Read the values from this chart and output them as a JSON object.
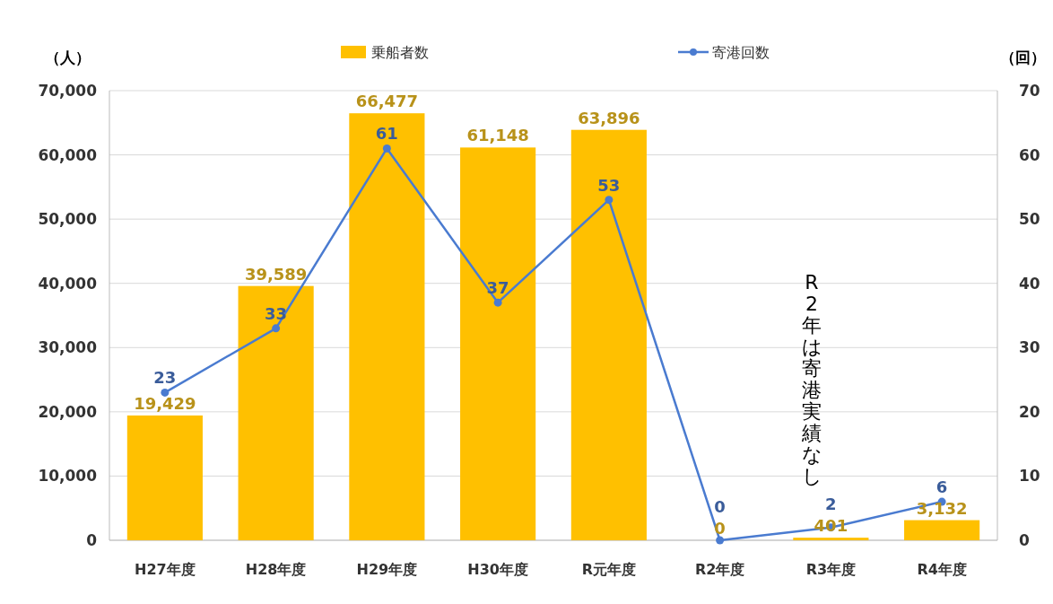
{
  "chart_data": {
    "type": "bar",
    "categories": [
      "H27年度",
      "H28年度",
      "H29年度",
      "H30年度",
      "R元年度",
      "R2年度",
      "R3年度",
      "R4年度"
    ],
    "series": [
      {
        "name": "乗船者数",
        "color": "#ffc000",
        "values": [
          19429,
          39589,
          66477,
          61148,
          63896,
          0,
          401,
          3132
        ],
        "value_labels": [
          "19,429",
          "39,589",
          "66,477",
          "61,148",
          "63,896",
          "0",
          "401",
          "3,132"
        ]
      },
      {
        "name": "寄港回数",
        "type": "line",
        "axis": "y2",
        "marker": "circle",
        "color": "#4a7bd0",
        "values": [
          23,
          33,
          61,
          37,
          53,
          0,
          2,
          6
        ],
        "value_labels": [
          "23",
          "33",
          "61",
          "37",
          "53",
          "0",
          "2",
          "6"
        ]
      }
    ],
    "ylabel": "（人）",
    "y2label": "（回）",
    "ylim": [
      0,
      70000
    ],
    "yticks": [
      {
        "value": 0,
        "label": "0"
      },
      {
        "value": 10000,
        "label": "10,000"
      },
      {
        "value": 20000,
        "label": "20,000"
      },
      {
        "value": 30000,
        "label": "30,000"
      },
      {
        "value": 40000,
        "label": "40,000"
      },
      {
        "value": 50000,
        "label": "50,000"
      },
      {
        "value": 60000,
        "label": "60,000"
      },
      {
        "value": 70000,
        "label": "70,000"
      }
    ],
    "y2lim": [
      0,
      70
    ],
    "y2ticks": [
      0,
      10,
      20,
      30,
      40,
      50,
      60,
      70
    ],
    "grid": "y",
    "legend": "top",
    "annotations": [
      "R2年は寄港実績なし"
    ]
  }
}
